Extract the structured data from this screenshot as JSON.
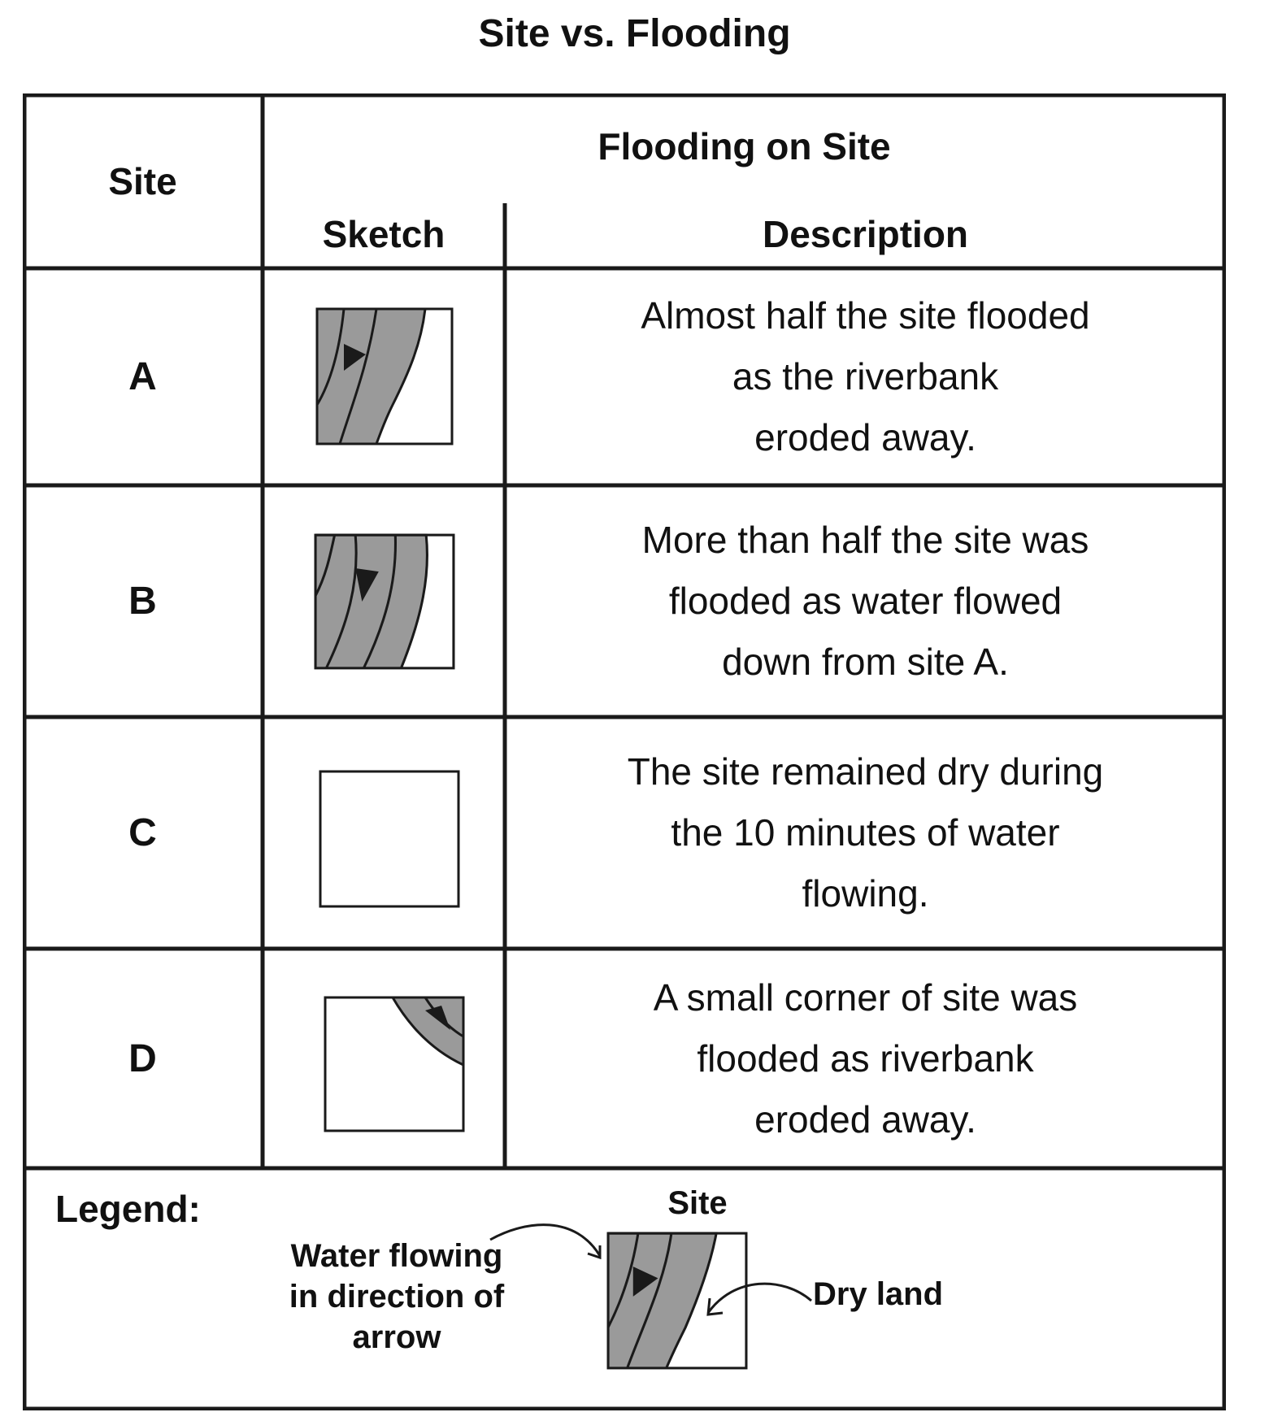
{
  "title": "Site vs. Flooding",
  "headers": {
    "site": "Site",
    "flooding": "Flooding on Site",
    "sketch": "Sketch",
    "description": "Description"
  },
  "rows": [
    {
      "site": "A",
      "sketch": "flood-half-icon",
      "description": [
        "Almost half the site flooded",
        "as the riverbank",
        "eroded away."
      ]
    },
    {
      "site": "B",
      "sketch": "flood-more-half-icon",
      "description": [
        "More than half the site was",
        "flooded as water flowed",
        "down from site A."
      ]
    },
    {
      "site": "C",
      "sketch": "dry-site-icon",
      "description": [
        "The site remained dry during",
        "the 10 minutes of water",
        "flowing."
      ]
    },
    {
      "site": "D",
      "sketch": "flood-corner-icon",
      "description": [
        "A small corner of site was",
        "flooded as riverbank",
        "eroded away."
      ]
    }
  ],
  "legend": {
    "title": "Legend:",
    "site_label": "Site",
    "water_label": [
      "Water flowing",
      "in direction of",
      "arrow"
    ],
    "dry_label": "Dry land"
  },
  "colors": {
    "water": "#9a9a9a",
    "line": "#1a1a1a",
    "background": "#ffffff"
  }
}
